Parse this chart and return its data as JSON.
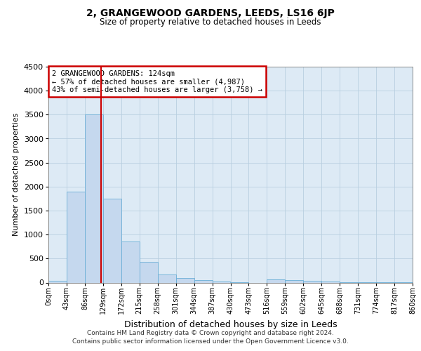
{
  "title": "2, GRANGEWOOD GARDENS, LEEDS, LS16 6JP",
  "subtitle": "Size of property relative to detached houses in Leeds",
  "xlabel": "Distribution of detached houses by size in Leeds",
  "ylabel": "Number of detached properties",
  "footer_line1": "Contains HM Land Registry data © Crown copyright and database right 2024.",
  "footer_line2": "Contains public sector information licensed under the Open Government Licence v3.0.",
  "annotation_line1": "2 GRANGEWOOD GARDENS: 124sqm",
  "annotation_line2": "← 57% of detached houses are smaller (4,987)",
  "annotation_line3": "43% of semi-detached houses are larger (3,758) →",
  "property_size": 124,
  "bar_edges": [
    0,
    43,
    86,
    129,
    172,
    215,
    258,
    301,
    344,
    387,
    430,
    473,
    516,
    559,
    602,
    645,
    688,
    731,
    774,
    817,
    860
  ],
  "bar_heights": [
    40,
    1900,
    3500,
    1750,
    850,
    430,
    175,
    100,
    45,
    18,
    8,
    0,
    70,
    48,
    30,
    18,
    10,
    7,
    5,
    2
  ],
  "bar_color": "#c5d8ee",
  "bar_edge_color": "#6aaed6",
  "vline_color": "#cc0000",
  "annotation_box_color": "#cc0000",
  "grid_color": "#b8cfe0",
  "background_color": "#ddeaf5",
  "ylim": [
    0,
    4500
  ],
  "yticks": [
    0,
    500,
    1000,
    1500,
    2000,
    2500,
    3000,
    3500,
    4000,
    4500
  ]
}
